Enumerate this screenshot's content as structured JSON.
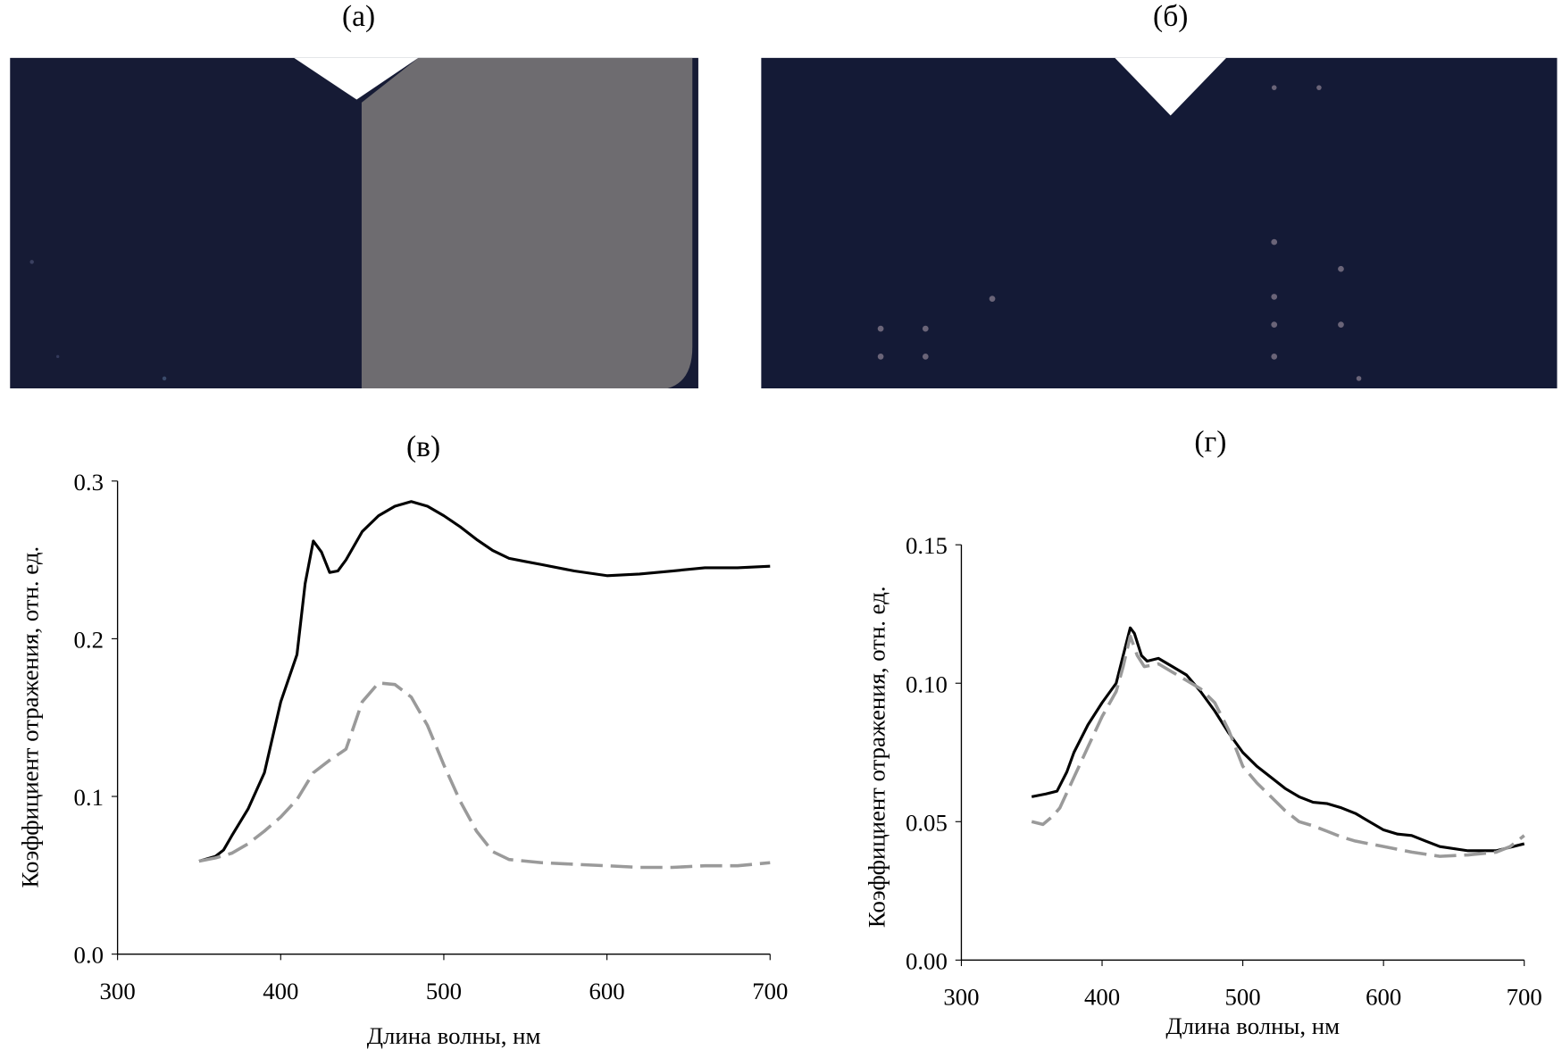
{
  "panels": {
    "a": {
      "label": "(а)"
    },
    "b": {
      "label": "(б)"
    },
    "c": {
      "label": "(в)"
    },
    "d": {
      "label": "(г)"
    }
  },
  "colors": {
    "photo_dark": "#161b35",
    "photo_gray": "#6e6c70",
    "series_solid": "#000000",
    "series_dashed": "#9a9a9a"
  },
  "chart_data": [
    {
      "id": "c",
      "type": "line",
      "title": "(в)",
      "xlabel": "Длина волны, нм",
      "ylabel": "Коэффициент отражения, отн. ед.",
      "xlim": [
        300,
        700
      ],
      "ylim": [
        0,
        0.3
      ],
      "xticks": [
        "300",
        "400",
        "500",
        "600",
        "700"
      ],
      "yticks": [
        "0.0",
        "0.1",
        "0.2",
        "0.3"
      ],
      "grid": false,
      "series": [
        {
          "name": "solid",
          "style": "solid",
          "x": [
            350,
            360,
            365,
            370,
            380,
            390,
            400,
            410,
            415,
            420,
            425,
            430,
            435,
            440,
            450,
            460,
            470,
            480,
            490,
            500,
            510,
            520,
            530,
            540,
            550,
            560,
            580,
            600,
            620,
            640,
            660,
            680,
            700
          ],
          "y": [
            0.059,
            0.062,
            0.066,
            0.075,
            0.092,
            0.115,
            0.16,
            0.19,
            0.235,
            0.262,
            0.255,
            0.242,
            0.243,
            0.25,
            0.268,
            0.278,
            0.284,
            0.287,
            0.284,
            0.278,
            0.271,
            0.263,
            0.256,
            0.251,
            0.249,
            0.247,
            0.243,
            0.24,
            0.241,
            0.243,
            0.245,
            0.245,
            0.246
          ]
        },
        {
          "name": "dashed",
          "style": "dashed",
          "x": [
            350,
            360,
            370,
            380,
            390,
            400,
            410,
            420,
            430,
            440,
            450,
            460,
            470,
            480,
            490,
            500,
            510,
            520,
            530,
            540,
            560,
            580,
            600,
            620,
            640,
            660,
            680,
            700
          ],
          "y": [
            0.059,
            0.061,
            0.064,
            0.07,
            0.078,
            0.087,
            0.098,
            0.115,
            0.123,
            0.13,
            0.16,
            0.172,
            0.171,
            0.163,
            0.145,
            0.12,
            0.097,
            0.078,
            0.065,
            0.06,
            0.058,
            0.057,
            0.056,
            0.055,
            0.055,
            0.056,
            0.056,
            0.058
          ]
        }
      ]
    },
    {
      "id": "d",
      "type": "line",
      "title": "(г)",
      "xlabel": "Длина волны, нм",
      "ylabel": "Коэффициент отражения, отн. ед.",
      "xlim": [
        300,
        700
      ],
      "ylim": [
        0,
        0.15
      ],
      "xticks": [
        "300",
        "400",
        "500",
        "600",
        "700"
      ],
      "yticks": [
        "0.00",
        "0.05",
        "0.10",
        "0.15"
      ],
      "grid": false,
      "series": [
        {
          "name": "solid",
          "style": "solid",
          "x": [
            350,
            360,
            368,
            375,
            380,
            390,
            400,
            410,
            415,
            420,
            423,
            428,
            432,
            440,
            450,
            460,
            470,
            480,
            490,
            500,
            510,
            520,
            530,
            540,
            550,
            560,
            570,
            580,
            590,
            600,
            610,
            620,
            630,
            640,
            660,
            680,
            700
          ],
          "y": [
            0.059,
            0.06,
            0.061,
            0.068,
            0.075,
            0.085,
            0.093,
            0.1,
            0.11,
            0.12,
            0.118,
            0.11,
            0.108,
            0.109,
            0.106,
            0.103,
            0.097,
            0.09,
            0.082,
            0.075,
            0.07,
            0.066,
            0.062,
            0.059,
            0.057,
            0.0565,
            0.055,
            0.053,
            0.05,
            0.047,
            0.0455,
            0.045,
            0.043,
            0.041,
            0.0395,
            0.0395,
            0.042
          ]
        },
        {
          "name": "dashed",
          "style": "dashed",
          "x": [
            350,
            358,
            365,
            370,
            380,
            390,
            400,
            410,
            415,
            420,
            425,
            430,
            440,
            450,
            460,
            470,
            480,
            490,
            500,
            510,
            520,
            530,
            540,
            550,
            560,
            570,
            580,
            600,
            620,
            640,
            660,
            680,
            690,
            700
          ],
          "y": [
            0.05,
            0.049,
            0.052,
            0.055,
            0.066,
            0.077,
            0.088,
            0.097,
            0.106,
            0.117,
            0.11,
            0.106,
            0.107,
            0.104,
            0.101,
            0.098,
            0.093,
            0.083,
            0.07,
            0.064,
            0.059,
            0.054,
            0.05,
            0.0485,
            0.0465,
            0.0445,
            0.043,
            0.041,
            0.039,
            0.0375,
            0.038,
            0.039,
            0.041,
            0.045
          ]
        }
      ]
    }
  ]
}
